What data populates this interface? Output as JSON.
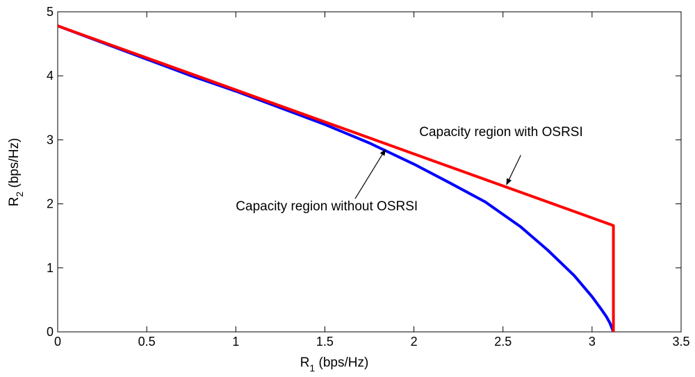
{
  "chart_data": {
    "type": "line",
    "title": "",
    "xlabel": {
      "main": "R",
      "sub": "1",
      "unit": " (bps/Hz)"
    },
    "ylabel": {
      "main": "R",
      "sub": "2",
      "unit": " (bps/Hz)"
    },
    "xlim": [
      0,
      3.5
    ],
    "ylim": [
      0,
      5
    ],
    "xticks": [
      0,
      0.5,
      1,
      1.5,
      2,
      2.5,
      3,
      3.5
    ],
    "xtick_labels": [
      "0",
      "0.5",
      "1",
      "1.5",
      "2",
      "2.5",
      "3",
      "3.5"
    ],
    "yticks": [
      0,
      1,
      2,
      3,
      4,
      5
    ],
    "ytick_labels": [
      "0",
      "1",
      "2",
      "3",
      "4",
      "5"
    ],
    "grid": false,
    "series": [
      {
        "color": "#ff0000",
        "x": [
          0,
          3.12,
          3.12,
          3.12
        ],
        "y": [
          4.78,
          1.66,
          0.8,
          0
        ]
      },
      {
        "color": "#0000ff",
        "x": [
          0,
          0.25,
          0.5,
          0.75,
          1.0,
          1.25,
          1.5,
          1.75,
          2.0,
          2.2,
          2.4,
          2.6,
          2.75,
          2.9,
          3.0,
          3.05,
          3.08,
          3.1,
          3.12
        ],
        "y": [
          4.78,
          4.52,
          4.26,
          4.0,
          3.76,
          3.5,
          3.24,
          2.95,
          2.62,
          2.33,
          2.03,
          1.64,
          1.28,
          0.88,
          0.55,
          0.36,
          0.24,
          0.14,
          0.0
        ]
      }
    ],
    "annotations": [
      {
        "text": "Capacity region with OSRSI",
        "text_x": 2.03,
        "text_y": 3.06,
        "arrow_from": [
          2.6,
          2.76
        ],
        "arrow_to": [
          2.52,
          2.3
        ]
      },
      {
        "text": "Capacity region without OSRSI",
        "text_x": 1.0,
        "text_y": 1.9,
        "arrow_from": [
          1.67,
          2.08
        ],
        "arrow_to": [
          1.84,
          2.85
        ]
      }
    ]
  }
}
